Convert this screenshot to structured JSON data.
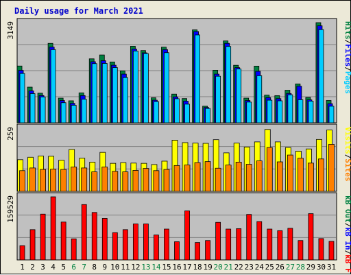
{
  "page": {
    "title": "Daily usage for March 2021"
  },
  "colors": {
    "background": "#ece9d8",
    "plot_bg": "#c0c0c0",
    "pages": "#00ccff",
    "files": "#0000ff",
    "hits": "#008040",
    "sites": "#ff8000",
    "visits": "#ffff00",
    "kbout": "#008040",
    "kbin": "#0000ff",
    "kbf": "#ff0000",
    "weekend_label": "#008040",
    "weekday_label": "#000000"
  },
  "chart_data": [
    {
      "type": "bar",
      "ymax_label": "3149",
      "ylim": [
        0,
        3149
      ],
      "categories": [
        "1",
        "2",
        "3",
        "4",
        "5",
        "6",
        "7",
        "8",
        "9",
        "10",
        "11",
        "12",
        "13",
        "14",
        "15",
        "16",
        "17",
        "18",
        "19",
        "20",
        "21",
        "22",
        "23",
        "24",
        "25",
        "26",
        "27",
        "28",
        "29",
        "30",
        "31"
      ],
      "weekend_days": [
        "6",
        "7",
        "13",
        "14",
        "20",
        "21",
        "27",
        "28"
      ],
      "side_labels": {
        "pages": "Pages",
        "files": "Files",
        "hits": "Hits"
      },
      "series": [
        {
          "name": "Hits",
          "values": [
            1785,
            1121,
            930,
            2497,
            775,
            691,
            940,
            2011,
            2133,
            1912,
            1632,
            2406,
            2271,
            785,
            2378,
            901,
            762,
            2923,
            521,
            1652,
            2574,
            1808,
            775,
            1782,
            869,
            852,
            1023,
            1222,
            796,
            3149,
            701
          ]
        },
        {
          "name": "Files",
          "values": [
            1648,
            1002,
            856,
            2380,
            700,
            610,
            855,
            1920,
            1952,
            1810,
            1530,
            2319,
            2200,
            710,
            2301,
            815,
            680,
            2870,
            480,
            1530,
            2497,
            1734,
            700,
            1618,
            790,
            760,
            921,
            1150,
            720,
            3050,
            600
          ]
        },
        {
          "name": "Pages",
          "values": [
            1550,
            917,
            812,
            2300,
            631,
            551,
            740,
            1860,
            1866,
            1736,
            1422,
            2257,
            2176,
            665,
            2205,
            756,
            585,
            2762,
            450,
            1463,
            2400,
            1691,
            650,
            1480,
            710,
            690,
            880,
            725,
            680,
            2930,
            520
          ]
        }
      ]
    },
    {
      "type": "bar",
      "ymax_label": "259",
      "ylim": [
        0,
        259
      ],
      "categories": [
        "1",
        "2",
        "3",
        "4",
        "5",
        "6",
        "7",
        "8",
        "9",
        "10",
        "11",
        "12",
        "13",
        "14",
        "15",
        "16",
        "17",
        "18",
        "19",
        "20",
        "21",
        "22",
        "23",
        "24",
        "25",
        "26",
        "27",
        "28",
        "29",
        "30",
        "31"
      ],
      "side_labels": {
        "sites": "Sites",
        "visits": "Visits"
      },
      "series": [
        {
          "name": "Visits",
          "values": [
            130,
            140,
            145,
            144,
            128,
            172,
            136,
            120,
            160,
            115,
            118,
            116,
            115,
            110,
            124,
            210,
            200,
            198,
            197,
            212,
            158,
            198,
            182,
            203,
            254,
            203,
            180,
            165,
            174,
            213,
            252
          ]
        },
        {
          "name": "Sites",
          "values": [
            85,
            96,
            90,
            91,
            90,
            100,
            96,
            80,
            100,
            82,
            80,
            86,
            94,
            85,
            90,
            106,
            108,
            118,
            122,
            95,
            108,
            120,
            111,
            125,
            180,
            121,
            149,
            136,
            116,
            133,
            193
          ]
        }
      ]
    },
    {
      "type": "bar",
      "ymax_label": "159529",
      "ylim": [
        0,
        159529
      ],
      "categories": [
        "1",
        "2",
        "3",
        "4",
        "5",
        "6",
        "7",
        "8",
        "9",
        "10",
        "11",
        "12",
        "13",
        "14",
        "15",
        "16",
        "17",
        "18",
        "19",
        "20",
        "21",
        "22",
        "23",
        "24",
        "25",
        "26",
        "27",
        "28",
        "29",
        "30",
        "31"
      ],
      "side_labels": {
        "kbf": "kB F",
        "kbin": "kB In",
        "kbout": "kB Out"
      },
      "series": [
        {
          "name": "kB F",
          "values": [
            36014,
            76582,
            115764,
            159529,
            95764,
            53333,
            140000,
            120000,
            105000,
            69000,
            76582,
            91000,
            91000,
            63000,
            78000,
            46000,
            124000,
            44000,
            49000,
            95000,
            78000,
            79000,
            115000,
            97000,
            78000,
            74000,
            80000,
            49000,
            117000,
            54000,
            47000
          ]
        }
      ]
    }
  ]
}
